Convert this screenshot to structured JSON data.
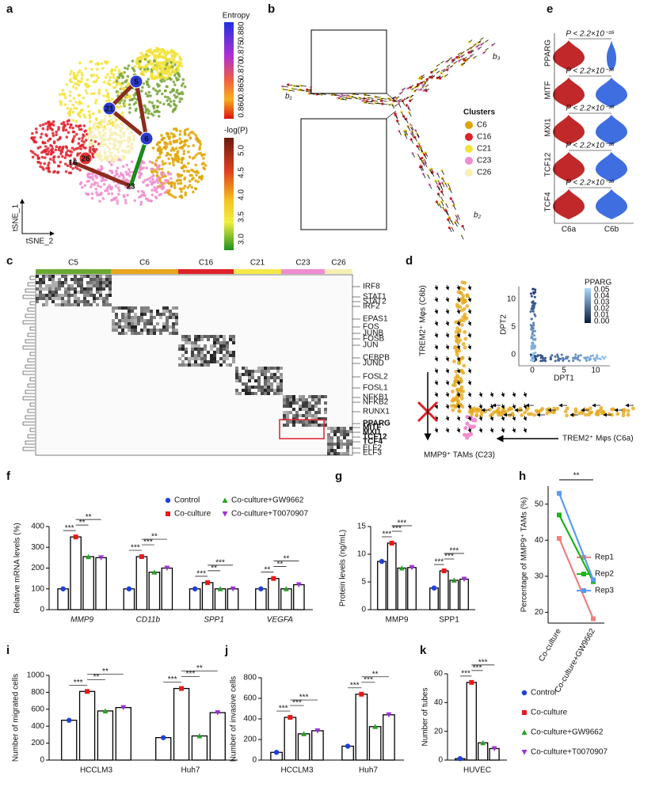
{
  "figure": {
    "panel_labels": [
      "a",
      "b",
      "c",
      "d",
      "e",
      "f",
      "g",
      "h",
      "i",
      "j",
      "k"
    ],
    "a": {
      "entropy_title": "Entropy",
      "entropy_ticks": [
        "0.880",
        "0.875",
        "0.870",
        "0.865",
        "0.860"
      ],
      "logp_title": "-log(P)",
      "logp_ticks": [
        "5.0",
        "4.5",
        "4.0",
        "3.5",
        "3.0"
      ],
      "nodes": [
        "5",
        "21",
        "6",
        "26",
        "16",
        "23"
      ],
      "x_axis": "tSNE_2",
      "y_axis": "tSNE_1"
    },
    "b": {
      "branches": [
        "b₁",
        "b₃",
        "b₂"
      ],
      "legend_title": "Clusters",
      "clusters": [
        {
          "name": "C6",
          "color": "#e0a400"
        },
        {
          "name": "C16",
          "color": "#e0202a"
        },
        {
          "name": "C21",
          "color": "#f3e33a"
        },
        {
          "name": "C23",
          "color": "#f08ccf"
        },
        {
          "name": "C26",
          "color": "#f7efb4"
        }
      ]
    },
    "c": {
      "clusters": [
        {
          "name": "C5",
          "color": "#6aa832"
        },
        {
          "name": "C6",
          "color": "#e8a51c"
        },
        {
          "name": "C16",
          "color": "#e0202a"
        },
        {
          "name": "C21",
          "color": "#f5e84a"
        },
        {
          "name": "C23",
          "color": "#f08ccf"
        },
        {
          "name": "C26",
          "color": "#f7efb4"
        }
      ],
      "genes": [
        "IRF8",
        "STAT1",
        "STAT2",
        "IRF2",
        "EPAS1",
        "FOS",
        "JUNB",
        "FOSB",
        "JUN",
        "CEBPB",
        "JUND",
        "FOSL2",
        "FOSL1",
        "NFKB1",
        "NFKB2",
        "RUNX1",
        {
          "name": "PPARG",
          "color": "#e0202a"
        },
        {
          "name": "MITF",
          "color": "#e0202a"
        },
        {
          "name": "MXI1",
          "color": "#e0202a"
        },
        {
          "name": "TCF12",
          "color": "#e0202a"
        },
        {
          "name": "TCF4",
          "color": "#e0202a"
        },
        "ELF2",
        "ELF3"
      ]
    },
    "d": {
      "label_c6b": "TREM2⁺ Mφs (C6b)",
      "label_c6a": "TREM2⁺ Mφs (C6a)",
      "label_c23": "MMP9⁺ TAMs (C23)",
      "inset": {
        "title": "PPARG",
        "scale_ticks": [
          "0.05",
          "0.04",
          "0.03",
          "0.02",
          "0.01",
          "0.00"
        ],
        "x_label": "DPT1",
        "y_label": "DPT2",
        "x_ticks": [
          "0",
          "5",
          "10"
        ],
        "y_ticks": [
          "0",
          "5",
          "10"
        ]
      }
    },
    "e": {
      "genes": [
        "PPARG",
        "MITF",
        "MXI1",
        "TCF12",
        "TCF4"
      ],
      "p_label": "P < 2.2×10⁻¹⁶",
      "groups": [
        "C6a",
        "C6b"
      ],
      "colors": [
        "#c0282a",
        "#3f6ee0"
      ]
    }
  },
  "chart_data": [
    {
      "type": "bar",
      "ylabel": "Relative mRNA levels (%)",
      "italic_categories": true,
      "legend": "top",
      "categories": [
        "MMP9",
        "CD11b",
        "SPP1",
        "VEGFA"
      ],
      "ylim": [
        0,
        400
      ],
      "yticks": [
        0,
        100,
        200,
        300,
        400
      ],
      "series": [
        {
          "name": "Control",
          "color": "#1f3fdd",
          "values": [
            100,
            100,
            100,
            100
          ]
        },
        {
          "name": "Co-culture",
          "color": "#e8191a",
          "values": [
            350,
            255,
            130,
            150
          ]
        },
        {
          "name": "Co-culture+GW9662",
          "color": "#2aa02a",
          "values": [
            255,
            180,
            100,
            100
          ]
        },
        {
          "name": "Co-culture+T0070907",
          "color": "#9b30d9",
          "values": [
            250,
            200,
            100,
            120
          ]
        }
      ],
      "significance": [
        [
          "***",
          "**",
          "**"
        ],
        [
          "***",
          "***",
          "**"
        ],
        [
          "***",
          "**",
          "***"
        ],
        [
          "**",
          "**",
          "**"
        ]
      ]
    },
    {
      "type": "bar",
      "ylabel": "Protein levels (ng/mL)",
      "categories": [
        "MMP9",
        "SPP1"
      ],
      "ylim": [
        0,
        15
      ],
      "yticks": [
        0,
        5,
        10,
        15
      ],
      "series": [
        {
          "color": "#1f3fdd",
          "values": [
            8.7,
            3.9
          ]
        },
        {
          "color": "#e8191a",
          "values": [
            12,
            7
          ]
        },
        {
          "color": "#2aa02a",
          "values": [
            7.5,
            5.3
          ]
        },
        {
          "color": "#9b30d9",
          "values": [
            7.6,
            5.5
          ]
        }
      ],
      "significance": [
        [
          "***",
          "***",
          "***"
        ],
        [
          "***",
          "***",
          "***"
        ]
      ]
    },
    {
      "type": "line",
      "ylabel": "Percentage of MMP9⁺ TAMs (%)",
      "categories": [
        "Co-culture",
        "Co-culture+GW9662"
      ],
      "ylim": [
        17,
        55
      ],
      "yticks": [
        20,
        30,
        40,
        50
      ],
      "annotation": "**",
      "series": [
        {
          "name": "Rep1",
          "color": "#f08080",
          "values": [
            40.5,
            18.2
          ]
        },
        {
          "name": "Rep2",
          "color": "#1db31d",
          "values": [
            47,
            28.5
          ]
        },
        {
          "name": "Rep3",
          "color": "#5b9bf0",
          "values": [
            53,
            29
          ]
        }
      ]
    },
    {
      "type": "bar",
      "ylabel": "Number of migrated cells",
      "categories": [
        "HCCLM3",
        "Huh7"
      ],
      "ylim": [
        0,
        1000
      ],
      "yticks": [
        0,
        200,
        400,
        600,
        800,
        1000
      ],
      "series": [
        {
          "color": "#1f3fdd",
          "values": [
            470,
            265
          ]
        },
        {
          "color": "#e8191a",
          "values": [
            810,
            845
          ]
        },
        {
          "color": "#2aa02a",
          "values": [
            580,
            285
          ]
        },
        {
          "color": "#9b30d9",
          "values": [
            620,
            560
          ]
        }
      ],
      "significance": [
        [
          "***",
          "**",
          "**"
        ],
        [
          "***",
          "***",
          "**"
        ]
      ]
    },
    {
      "type": "bar",
      "ylabel": "Number of invasive cells",
      "categories": [
        "HCCLM3",
        "Huh7"
      ],
      "ylim": [
        0,
        800
      ],
      "yticks": [
        0,
        200,
        400,
        600,
        800
      ],
      "series": [
        {
          "color": "#1f3fdd",
          "values": [
            75,
            135
          ]
        },
        {
          "color": "#e8191a",
          "values": [
            415,
            640
          ]
        },
        {
          "color": "#2aa02a",
          "values": [
            255,
            325
          ]
        },
        {
          "color": "#9b30d9",
          "values": [
            285,
            440
          ]
        }
      ],
      "significance": [
        [
          "***",
          "***",
          "***"
        ],
        [
          "***",
          "***",
          "**"
        ]
      ]
    },
    {
      "type": "bar",
      "ylabel": "Number of tubes",
      "legend": "right",
      "categories": [
        "HUVEC"
      ],
      "ylim": [
        0,
        60
      ],
      "yticks": [
        0,
        20,
        40,
        60
      ],
      "series": [
        {
          "name": "Control",
          "color": "#1f3fdd",
          "values": [
            1
          ]
        },
        {
          "name": "Co-culture",
          "color": "#e8191a",
          "values": [
            54
          ]
        },
        {
          "name": "Co-culture+GW9662",
          "color": "#2aa02a",
          "values": [
            12
          ]
        },
        {
          "name": "Co-culture+T0070907",
          "color": "#9b30d9",
          "values": [
            8
          ]
        }
      ],
      "significance": [
        [
          "***",
          "***",
          "***"
        ]
      ]
    }
  ]
}
